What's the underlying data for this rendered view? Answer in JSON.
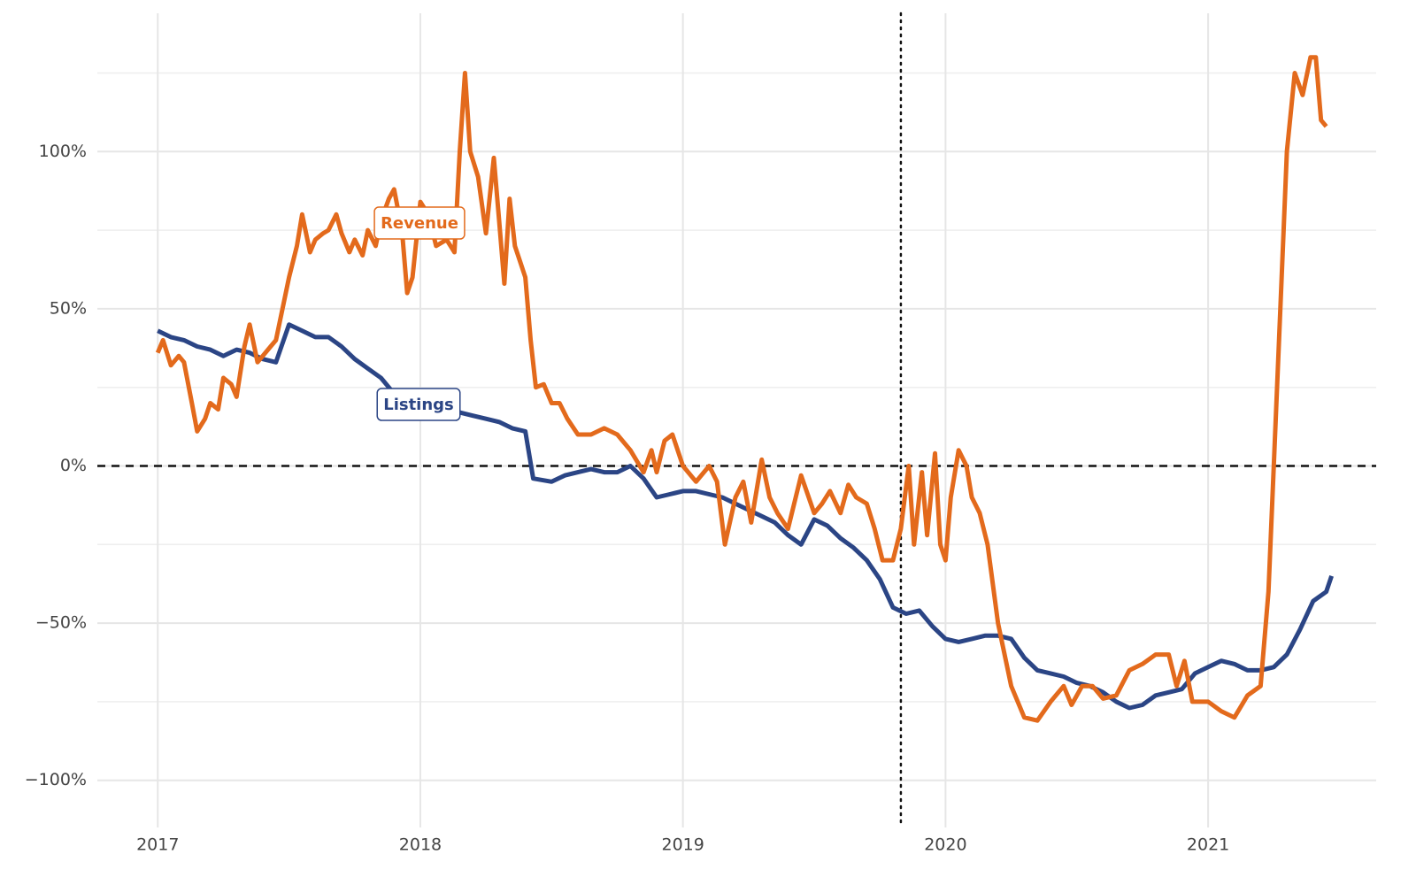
{
  "chart_data": {
    "type": "line",
    "xlim": [
      2016.77,
      2021.64
    ],
    "xticks": [
      2017,
      2018,
      2019,
      2020,
      2021
    ],
    "ylim": [
      -115,
      144
    ],
    "yticks": [
      {
        "value": -100,
        "label": "−100%"
      },
      {
        "value": -50,
        "label": "−50%"
      },
      {
        "value": 0,
        "label": "0%"
      },
      {
        "value": 50,
        "label": "50%"
      },
      {
        "value": 100,
        "label": "100%"
      }
    ],
    "yminorticks": [
      -75,
      -25,
      25,
      75,
      125
    ],
    "grid": true,
    "hline": 0,
    "vline": 2019.83,
    "series": [
      {
        "name": "Listings",
        "color": "#2b4585",
        "x": [
          2017.0,
          2017.05,
          2017.1,
          2017.15,
          2017.2,
          2017.25,
          2017.3,
          2017.35,
          2017.4,
          2017.45,
          2017.5,
          2017.55,
          2017.6,
          2017.65,
          2017.7,
          2017.75,
          2017.8,
          2017.85,
          2017.9,
          2017.95,
          2018.0,
          2018.05,
          2018.1,
          2018.15,
          2018.2,
          2018.25,
          2018.3,
          2018.35,
          2018.4,
          2018.43,
          2018.5,
          2018.55,
          2018.6,
          2018.65,
          2018.7,
          2018.75,
          2018.8,
          2018.85,
          2018.9,
          2018.95,
          2019.0,
          2019.05,
          2019.1,
          2019.15,
          2019.2,
          2019.25,
          2019.3,
          2019.35,
          2019.4,
          2019.45,
          2019.5,
          2019.55,
          2019.6,
          2019.65,
          2019.7,
          2019.75,
          2019.8,
          2019.85,
          2019.9,
          2019.95,
          2020.0,
          2020.05,
          2020.1,
          2020.15,
          2020.2,
          2020.25,
          2020.3,
          2020.35,
          2020.4,
          2020.45,
          2020.5,
          2020.55,
          2020.6,
          2020.65,
          2020.7,
          2020.75,
          2020.8,
          2020.85,
          2020.9,
          2020.95,
          2021.0,
          2021.05,
          2021.1,
          2021.15,
          2021.2,
          2021.25,
          2021.3,
          2021.35,
          2021.4,
          2021.45,
          2021.47
        ],
        "values": [
          43,
          41,
          40,
          38,
          37,
          35,
          37,
          36,
          34,
          33,
          45,
          43,
          41,
          41,
          38,
          34,
          31,
          28,
          23,
          22,
          20,
          19,
          18,
          17,
          16,
          15,
          14,
          12,
          11,
          -4,
          -5,
          -3,
          -2,
          -1,
          -2,
          -2,
          0,
          -4,
          -10,
          -9,
          -8,
          -8,
          -9,
          -10,
          -12,
          -14,
          -16,
          -18,
          -22,
          -25,
          -17,
          -19,
          -23,
          -26,
          -30,
          -36,
          -45,
          -47,
          -46,
          -51,
          -55,
          -56,
          -55,
          -54,
          -54,
          -55,
          -61,
          -65,
          -66,
          -67,
          -69,
          -70,
          -72,
          -75,
          -77,
          -76,
          -73,
          -72,
          -71,
          -66,
          -64,
          -62,
          -63,
          -65,
          -65,
          -64,
          -60,
          -52,
          -43,
          -40,
          -35
        ]
      },
      {
        "name": "Revenue",
        "color": "#e36a1c",
        "x": [
          2017.0,
          2017.02,
          2017.05,
          2017.08,
          2017.1,
          2017.13,
          2017.15,
          2017.18,
          2017.2,
          2017.23,
          2017.25,
          2017.28,
          2017.3,
          2017.33,
          2017.35,
          2017.38,
          2017.4,
          2017.43,
          2017.45,
          2017.48,
          2017.5,
          2017.53,
          2017.55,
          2017.58,
          2017.6,
          2017.63,
          2017.65,
          2017.68,
          2017.7,
          2017.73,
          2017.75,
          2017.78,
          2017.8,
          2017.83,
          2017.85,
          2017.88,
          2017.9,
          2017.93,
          2017.95,
          2017.97,
          2018.0,
          2018.03,
          2018.06,
          2018.1,
          2018.13,
          2018.15,
          2018.17,
          2018.19,
          2018.22,
          2018.25,
          2018.28,
          2018.3,
          2018.32,
          2018.34,
          2018.36,
          2018.38,
          2018.4,
          2018.42,
          2018.44,
          2018.47,
          2018.5,
          2018.53,
          2018.56,
          2018.6,
          2018.65,
          2018.7,
          2018.75,
          2018.8,
          2018.85,
          2018.88,
          2018.9,
          2018.93,
          2018.96,
          2019.0,
          2019.05,
          2019.1,
          2019.13,
          2019.16,
          2019.2,
          2019.23,
          2019.26,
          2019.3,
          2019.33,
          2019.36,
          2019.4,
          2019.45,
          2019.5,
          2019.53,
          2019.56,
          2019.6,
          2019.63,
          2019.66,
          2019.7,
          2019.73,
          2019.76,
          2019.8,
          2019.83,
          2019.86,
          2019.88,
          2019.91,
          2019.93,
          2019.96,
          2019.98,
          2020.0,
          2020.02,
          2020.05,
          2020.08,
          2020.1,
          2020.13,
          2020.16,
          2020.2,
          2020.25,
          2020.3,
          2020.35,
          2020.4,
          2020.45,
          2020.48,
          2020.52,
          2020.56,
          2020.6,
          2020.65,
          2020.7,
          2020.75,
          2020.8,
          2020.85,
          2020.88,
          2020.91,
          2020.94,
          2021.0,
          2021.05,
          2021.1,
          2021.15,
          2021.2,
          2021.23,
          2021.25,
          2021.28,
          2021.3,
          2021.33,
          2021.36,
          2021.39,
          2021.41,
          2021.43,
          2021.45
        ],
        "values": [
          36,
          40,
          32,
          35,
          33,
          20,
          11,
          15,
          20,
          18,
          28,
          26,
          22,
          38,
          45,
          33,
          35,
          38,
          40,
          52,
          60,
          70,
          80,
          68,
          72,
          74,
          75,
          80,
          74,
          68,
          72,
          67,
          75,
          70,
          78,
          85,
          88,
          75,
          55,
          60,
          84,
          80,
          70,
          72,
          68,
          100,
          125,
          100,
          92,
          74,
          98,
          78,
          58,
          85,
          70,
          65,
          60,
          40,
          25,
          26,
          20,
          20,
          15,
          10,
          10,
          12,
          10,
          5,
          -2,
          5,
          -2,
          8,
          10,
          0,
          -5,
          0,
          -5,
          -25,
          -10,
          -5,
          -18,
          2,
          -10,
          -15,
          -20,
          -3,
          -15,
          -12,
          -8,
          -15,
          -6,
          -10,
          -12,
          -20,
          -30,
          -30,
          -20,
          0,
          -25,
          -2,
          -22,
          4,
          -25,
          -30,
          -10,
          5,
          0,
          -10,
          -15,
          -25,
          -50,
          -70,
          -80,
          -81,
          -75,
          -70,
          -76,
          -70,
          -70,
          -74,
          -73,
          -65,
          -63,
          -60,
          -60,
          -70,
          -62,
          -75,
          -75,
          -78,
          -80,
          -73,
          -70,
          -40,
          0,
          60,
          100,
          125,
          118,
          130,
          130,
          110,
          108
        ]
      }
    ]
  }
}
